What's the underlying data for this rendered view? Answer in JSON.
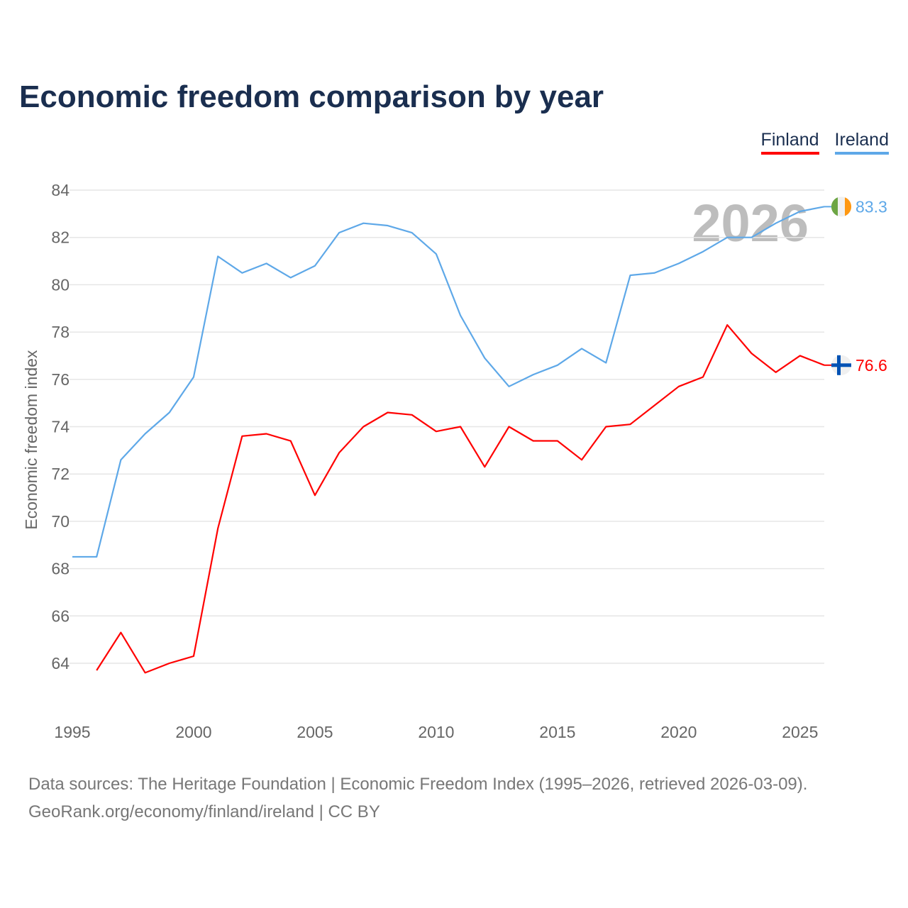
{
  "chart_data": {
    "type": "line",
    "title": "Economic freedom comparison by year",
    "ylabel": "Economic freedom index",
    "xlabel": "",
    "ylim": [
      62,
      84
    ],
    "xlim": [
      1995,
      2026
    ],
    "yticks": [
      64,
      66,
      68,
      70,
      72,
      74,
      76,
      78,
      80,
      82,
      84
    ],
    "xticks": [
      1995,
      2000,
      2005,
      2010,
      2015,
      2020,
      2025
    ],
    "grid": true,
    "legend_position": "top-right",
    "watermark_year": "2026",
    "series": [
      {
        "name": "Finland",
        "color": "#ff0000",
        "end_label": "76.6",
        "x": [
          1996,
          1997,
          1998,
          1999,
          2000,
          2001,
          2002,
          2003,
          2004,
          2005,
          2006,
          2007,
          2008,
          2009,
          2010,
          2011,
          2012,
          2013,
          2014,
          2015,
          2016,
          2017,
          2018,
          2019,
          2020,
          2021,
          2022,
          2023,
          2024,
          2025,
          2026
        ],
        "values": [
          63.7,
          65.3,
          63.6,
          64.0,
          64.3,
          69.7,
          73.6,
          73.7,
          73.4,
          71.1,
          72.9,
          74.0,
          74.6,
          74.5,
          73.8,
          74.0,
          72.3,
          74.0,
          73.4,
          73.4,
          72.6,
          74.0,
          74.1,
          74.9,
          75.7,
          76.1,
          78.3,
          77.1,
          76.3,
          77.0,
          76.6
        ]
      },
      {
        "name": "Ireland",
        "color": "#5ea8e8",
        "end_label": "83.3",
        "x": [
          1995,
          1996,
          1997,
          1998,
          1999,
          2000,
          2001,
          2002,
          2003,
          2004,
          2005,
          2006,
          2007,
          2008,
          2009,
          2010,
          2011,
          2012,
          2013,
          2014,
          2015,
          2016,
          2017,
          2018,
          2019,
          2020,
          2021,
          2022,
          2023,
          2024,
          2025,
          2026
        ],
        "values": [
          68.5,
          68.5,
          72.6,
          73.7,
          74.6,
          76.1,
          81.2,
          80.5,
          80.9,
          80.3,
          80.8,
          82.2,
          82.6,
          82.5,
          82.2,
          81.3,
          78.7,
          76.9,
          75.7,
          76.2,
          76.6,
          77.3,
          76.7,
          80.4,
          80.5,
          80.9,
          81.4,
          82.0,
          82.0,
          82.6,
          83.1,
          83.3
        ]
      }
    ]
  },
  "footer": {
    "line1": "Data sources: The Heritage Foundation | Economic Freedom Index (1995–2026, retrieved 2026-03-09).",
    "line2": "GeoRank.org/economy/finland/ireland | CC BY"
  }
}
